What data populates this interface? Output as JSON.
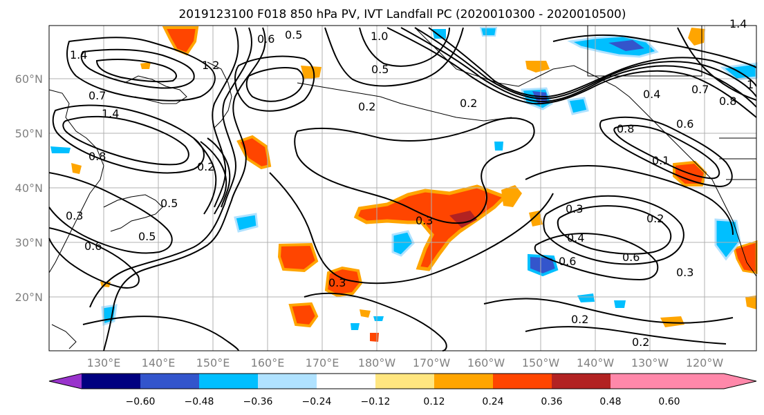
{
  "title": "2019123100 F018 850 hPa PV, IVT Landfall PC (2020010300 - 2020010500)",
  "map": {
    "lon_labels": [
      "130°E",
      "140°E",
      "150°E",
      "160°E",
      "170°E",
      "180°W",
      "170°W",
      "160°W",
      "150°W",
      "140°W",
      "130°W",
      "120°W"
    ],
    "lat_labels": [
      "20°N",
      "30°N",
      "40°N",
      "50°N",
      "60°N"
    ],
    "contour_labels": [
      "0.6",
      "0.5",
      "1.0",
      "1.4",
      "1.2",
      "1.4",
      "0.7",
      "1.4",
      "0.8",
      "0.2",
      "0.5",
      "0.2",
      "0.3",
      "0.5",
      "0.6",
      "0.5",
      "0.3",
      "0.3",
      "0.2",
      "0.4",
      "0.6",
      "0.7",
      "0.8",
      "1",
      "0.8",
      "0.1",
      "0.3",
      "0.4",
      "0.6",
      "0.6",
      "0.2",
      "0.3",
      "0.2",
      "0.2"
    ]
  },
  "colorbar": {
    "tick_labels": [
      "−0.60",
      "−0.48",
      "−0.36",
      "−0.24",
      "−0.12",
      "0.12",
      "0.24",
      "0.36",
      "0.48",
      "0.60"
    ],
    "colors": [
      "#9933cc",
      "#000080",
      "#3355cc",
      "#00bfff",
      "#b0e2ff",
      "#ffffff",
      "#ffe680",
      "#ffa500",
      "#ff4500",
      "#b22222",
      "#ff88aa"
    ]
  }
}
